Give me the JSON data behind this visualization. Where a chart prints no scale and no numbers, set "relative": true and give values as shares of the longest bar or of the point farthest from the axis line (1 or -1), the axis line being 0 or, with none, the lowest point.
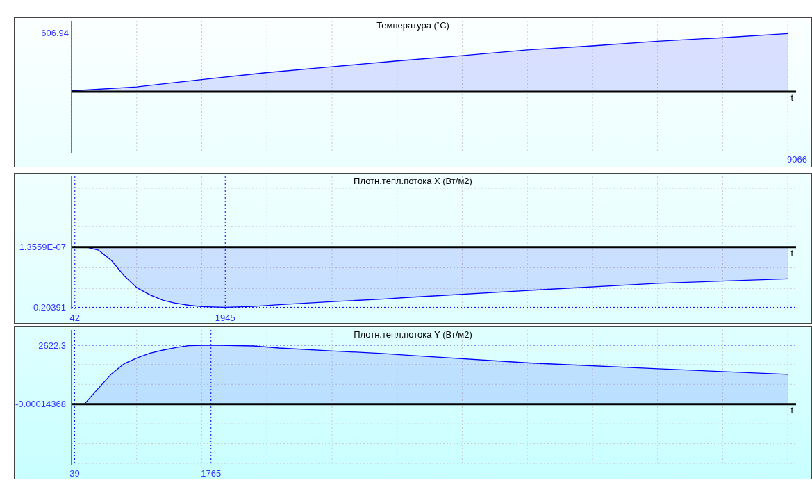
{
  "chart_data": [
    {
      "type": "area",
      "title": "Температура (˚C)",
      "xlabel": "t",
      "color": "#0000ff",
      "marker": "none",
      "grid": true,
      "legend": false,
      "relative": true,
      "categories": [
        null,
        null,
        null,
        null,
        null,
        null,
        null,
        null,
        null,
        null,
        null,
        null
      ],
      "values": [
        0.016,
        0.084,
        0.21,
        0.33,
        0.43,
        0.53,
        0.62,
        0.72,
        0.79,
        0.87,
        0.93,
        1
      ],
      "annotations": [
        "606.94",
        "9066"
      ]
    },
    {
      "type": "area",
      "title": "Плотн.тепл.потока X (Вт/м2)",
      "xlabel": "t",
      "color": "#0000ff",
      "marker": "none",
      "grid": true,
      "legend": false,
      "x": [
        0,
        42,
        210,
        340,
        505,
        670,
        830,
        995,
        1160,
        1320,
        1485,
        1650,
        1945,
        2300,
        2625,
        3280,
        3930,
        4280,
        5790,
        7420,
        9066
      ],
      "values": [
        0,
        1.3559e-07,
        -0.001,
        -0.01,
        -0.045,
        -0.098,
        -0.138,
        -0.162,
        -0.18,
        -0.19,
        -0.197,
        -0.2015,
        -0.20391,
        -0.201,
        -0.195,
        -0.185,
        -0.176,
        -0.17,
        -0.1465,
        -0.1225,
        -0.107
      ],
      "xlim": [
        0,
        9170
      ],
      "ylim": [
        -0.21,
        0.24
      ],
      "xticks": [
        42,
        {
          "value": 824,
          "label": null
        },
        {
          "value": 1648,
          "label": null
        },
        1945,
        {
          "value": 2473,
          "label": null
        },
        {
          "value": 3297,
          "label": null
        },
        {
          "value": 4121,
          "label": null
        },
        {
          "value": 4945,
          "label": null
        },
        {
          "value": 5769,
          "label": null
        },
        {
          "value": 6593,
          "label": null
        },
        {
          "value": 7418,
          "label": null
        },
        {
          "value": 8242,
          "label": null
        },
        {
          "value": 9066,
          "label": null
        }
      ],
      "yticks": [
        -0.20391,
        {
          "value": -0.14,
          "label": null
        },
        {
          "value": -0.07,
          "label": null
        },
        {
          "value": 1.3559e-07,
          "label": "1.3559E-07"
        },
        {
          "value": 0.07,
          "label": null
        },
        {
          "value": 0.14,
          "label": null
        },
        {
          "value": 0.2,
          "label": null
        }
      ]
    },
    {
      "type": "area",
      "title": "Плотн.тепл.потока Y (Вт/м2)",
      "xlabel": "t",
      "color": "#0000ff",
      "marker": "none",
      "grid": true,
      "legend": false,
      "x": [
        0,
        39,
        163,
        343,
        506,
        669,
        832,
        995,
        1158,
        1321,
        1484,
        1765,
        2300,
        2626,
        3278,
        3931,
        4283,
        5793,
        7422,
        9066
      ],
      "values": [
        0,
        -0.00014368,
        0,
        713,
        1346,
        1806,
        2059,
        2265,
        2403,
        2518,
        2599,
        2622.3,
        2588,
        2496,
        2369,
        2254,
        2170,
        1831,
        1571,
        1322
      ],
      "xlim": [
        0,
        9170
      ],
      "ylim": [
        -2700,
        3300
      ],
      "xticks": [
        39,
        {
          "value": 824,
          "label": null
        },
        {
          "value": 1648,
          "label": null
        },
        1765,
        {
          "value": 2473,
          "label": null
        },
        {
          "value": 3297,
          "label": null
        },
        {
          "value": 4121,
          "label": null
        },
        {
          "value": 4945,
          "label": null
        },
        {
          "value": 5769,
          "label": null
        },
        {
          "value": 6593,
          "label": null
        },
        {
          "value": 7418,
          "label": null
        },
        {
          "value": 8242,
          "label": null
        },
        {
          "value": 9066,
          "label": null
        }
      ],
      "yticks": [
        {
          "value": -2640,
          "label": null
        },
        {
          "value": -1760,
          "label": null
        },
        {
          "value": -880,
          "label": null
        },
        -0.00014368,
        {
          "value": 880,
          "label": null
        },
        {
          "value": 1760,
          "label": null
        },
        2622.3
      ]
    }
  ]
}
